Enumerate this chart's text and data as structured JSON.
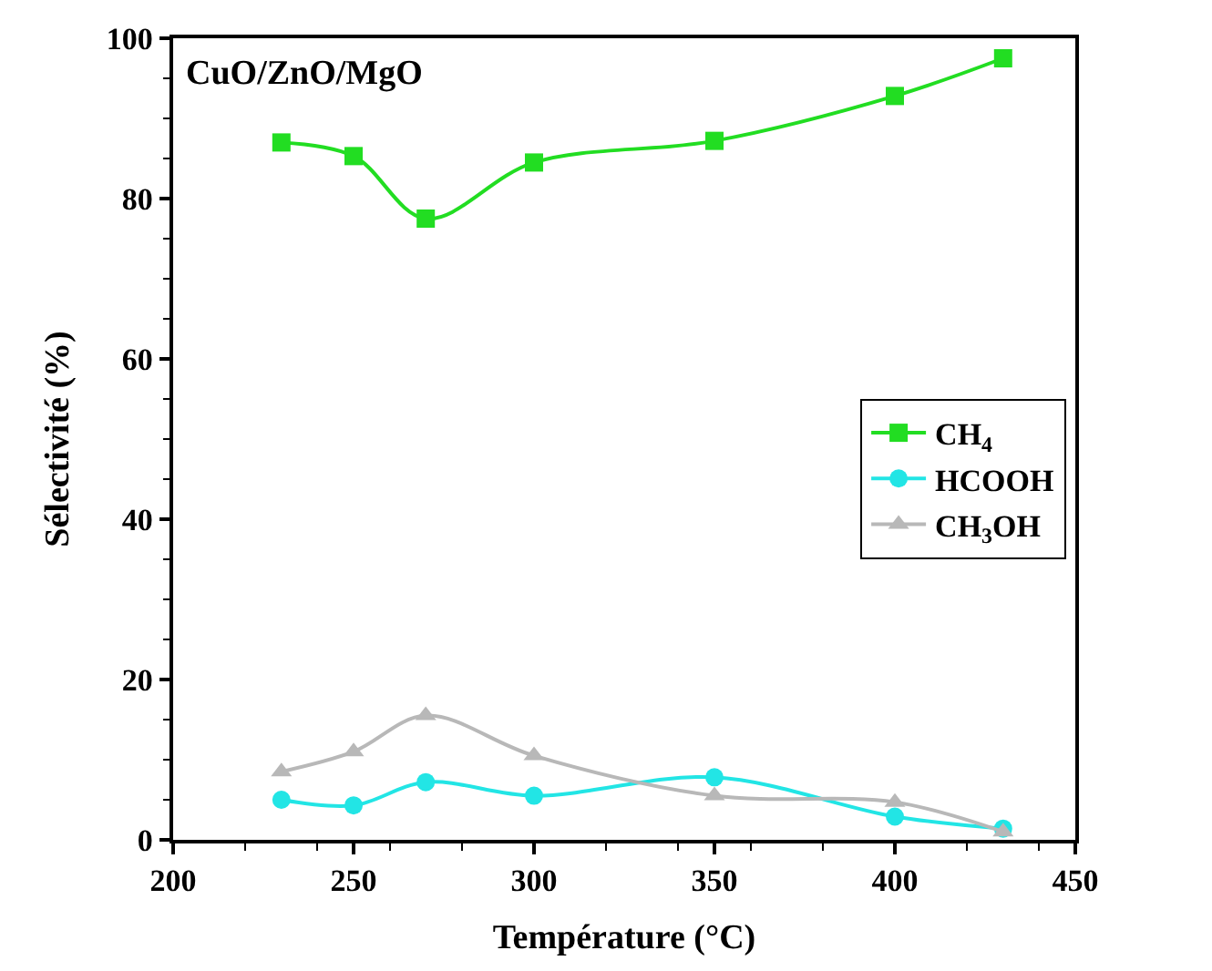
{
  "chart_data": {
    "type": "line",
    "xlabel": "Température (°C)",
    "ylabel": "Sélectivité (%)",
    "annotations": [
      "CuO/ZnO/MgO"
    ],
    "x": [
      230,
      250,
      270,
      300,
      350,
      400,
      430
    ],
    "series": [
      {
        "name": "CH$_{4}$",
        "color": "#22dd22",
        "marker": "square",
        "values": [
          87,
          85.3,
          77.5,
          84.5,
          87.2,
          92.8,
          97.5
        ]
      },
      {
        "name": "HCOOH",
        "color": "#22e5e5",
        "marker": "circle",
        "values": [
          5,
          4.3,
          7.2,
          5.5,
          7.8,
          2.9,
          1.4
        ]
      },
      {
        "name": "CH$_{3}$OH",
        "color": "#b8b8b8",
        "marker": "triangle",
        "values": [
          8.5,
          11,
          15.5,
          10.5,
          5.5,
          4.7,
          1
        ]
      }
    ],
    "xlim": [
      200,
      450
    ],
    "xticks": [
      200,
      250,
      300,
      350,
      400,
      450
    ],
    "ylim": [
      0,
      100
    ],
    "yticks": [
      0,
      20,
      40,
      60,
      80,
      100
    ],
    "legend": "right",
    "line_style": "solid"
  }
}
